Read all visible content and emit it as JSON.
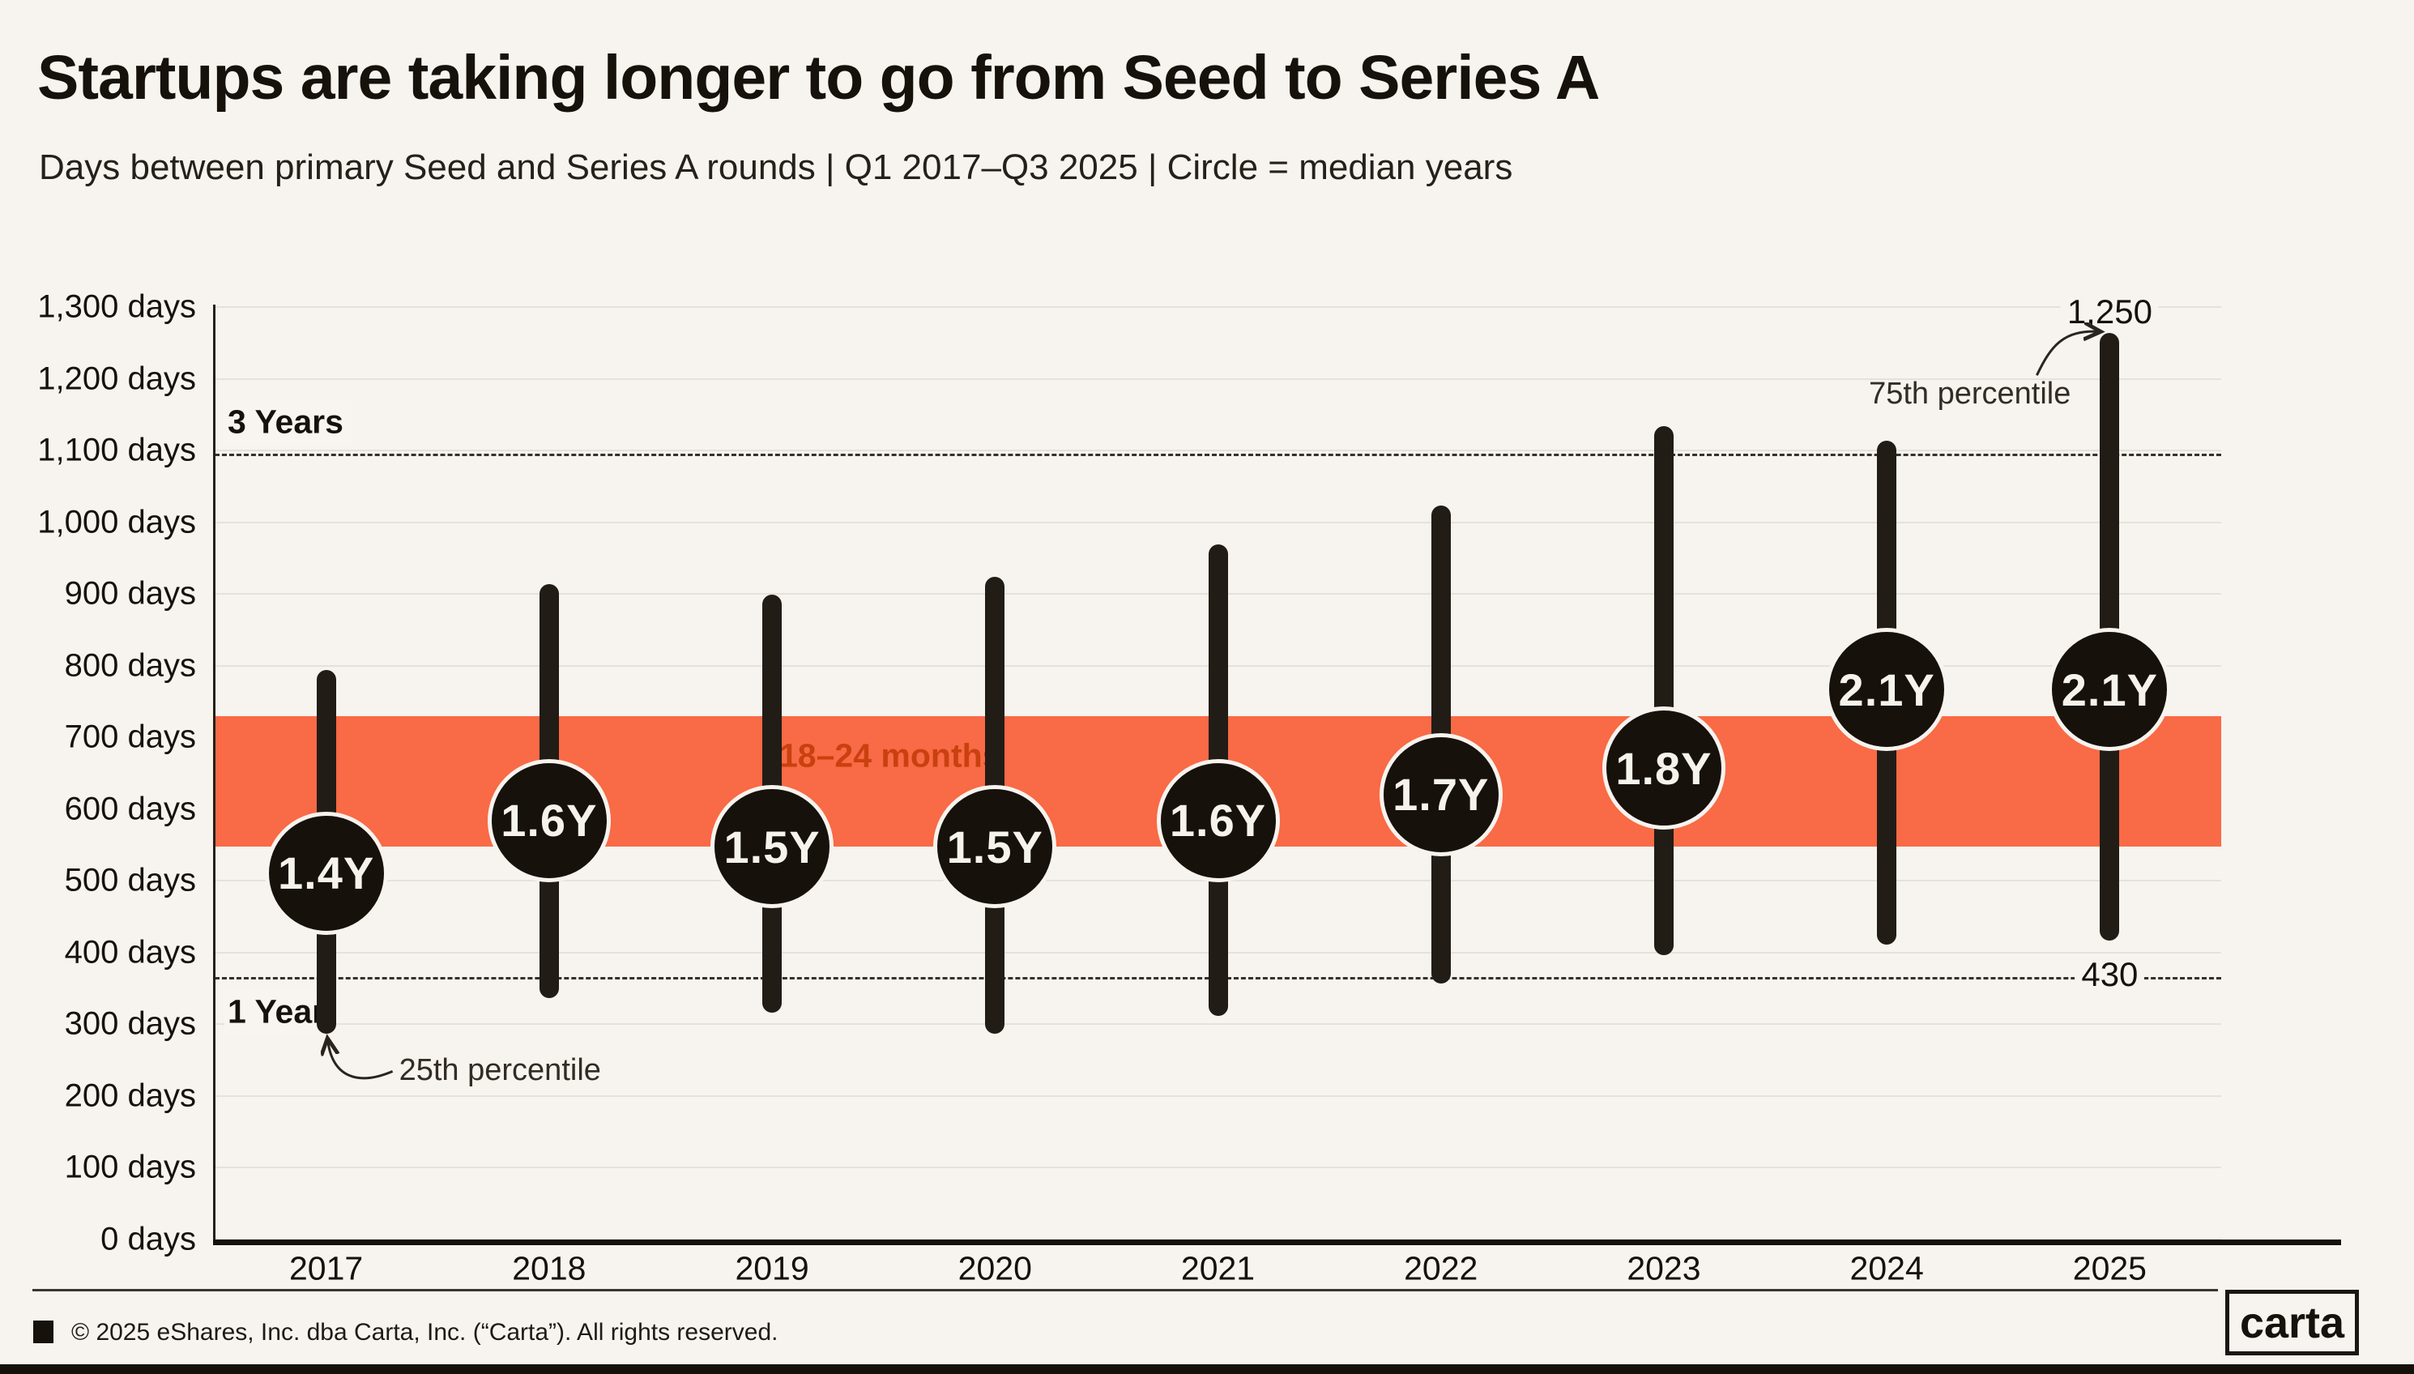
{
  "header": {
    "title": "Startups are taking longer to go from Seed to Series A",
    "subtitle": "Days between primary Seed and Series A rounds | Q1 2017–Q3 2025 | Circle = median years"
  },
  "chart_data": {
    "type": "bar",
    "variant": "dot-and-whisker percentile range",
    "title": "Startups are taking longer to go from Seed to Series A",
    "subtitle": "Days between primary Seed and Series A rounds | Q1 2017–Q3 2025 | Circle = median years",
    "categories": [
      "2017",
      "2018",
      "2019",
      "2020",
      "2021",
      "2022",
      "2023",
      "2024",
      "2025"
    ],
    "series": [
      {
        "name": "25th percentile (days)",
        "values": [
          300,
          350,
          330,
          300,
          325,
          370,
          410,
          425,
          430
        ]
      },
      {
        "name": "75th percentile (days)",
        "values": [
          780,
          900,
          885,
          910,
          955,
          1010,
          1120,
          1100,
          1250
        ]
      },
      {
        "name": "Median (years)",
        "values": [
          1.4,
          1.6,
          1.5,
          1.5,
          1.6,
          1.7,
          1.8,
          2.1,
          2.1
        ],
        "labels": [
          "1.4Y",
          "1.6Y",
          "1.5Y",
          "1.5Y",
          "1.6Y",
          "1.7Y",
          "1.8Y",
          "2.1Y",
          "2.1Y"
        ]
      }
    ],
    "ylim": [
      0,
      1355
    ],
    "grid": true,
    "legend": false,
    "y_ticks": [
      {
        "days": 0,
        "label": "0 days"
      },
      {
        "days": 100,
        "label": "100 days"
      },
      {
        "days": 200,
        "label": "200 days"
      },
      {
        "days": 300,
        "label": "300 days"
      },
      {
        "days": 400,
        "label": "400 days"
      },
      {
        "days": 500,
        "label": "500 days"
      },
      {
        "days": 600,
        "label": "600 days"
      },
      {
        "days": 700,
        "label": "700 days"
      },
      {
        "days": 800,
        "label": "800 days"
      },
      {
        "days": 900,
        "label": "900 days"
      },
      {
        "days": 1000,
        "label": "1,000 days"
      },
      {
        "days": 1100,
        "label": "1,100 days"
      },
      {
        "days": 1200,
        "label": "1,200 days"
      },
      {
        "days": 1300,
        "label": "1,300 days"
      }
    ],
    "reference_lines": [
      {
        "label": "3 Years",
        "days": 1095
      },
      {
        "label": "1 Year",
        "days": 365
      }
    ],
    "band": {
      "label": "18–24 months",
      "from_days": 548,
      "to_days": 730
    },
    "annotations": {
      "p25": {
        "text": "25th percentile",
        "target_year": "2017",
        "target_value_days": 300
      },
      "p75": {
        "text": "75th percentile",
        "target_year": "2025",
        "target_value_days": 1250
      },
      "max_label": {
        "text": "1,250",
        "target_year": "2025"
      },
      "min_label": {
        "text": "430",
        "target_year": "2025"
      }
    }
  },
  "footer": {
    "copyright": "© 2025 eShares, Inc. dba Carta, Inc. (“Carta”). All rights reserved.",
    "logo_text": "carta"
  },
  "colors": {
    "background": "#f7f3ee",
    "band": "#f96a46",
    "band_label": "#c8410f",
    "whisker": "#221c16",
    "dot": "#17110c",
    "dot_text": "#f6f2ec",
    "grid": "#e6e1da",
    "text": "#16110b"
  }
}
